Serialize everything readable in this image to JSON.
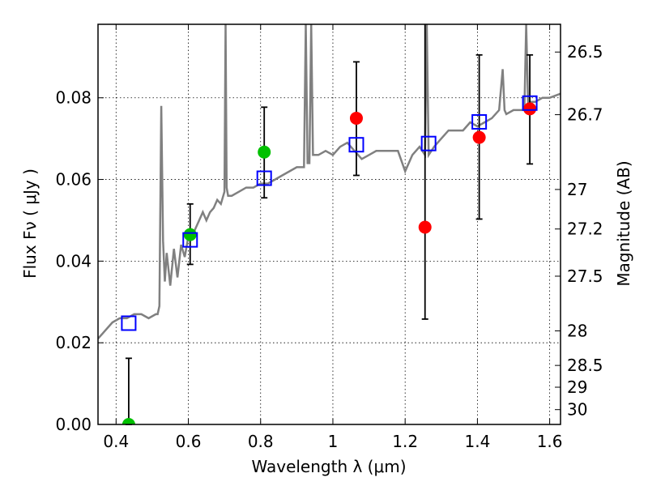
{
  "chart_data": {
    "type": "scatter",
    "xlabel": "Wavelength  λ (μm)",
    "ylabel": "Flux  Fν  ( μJy )",
    "y2label": "Magnitude (AB)",
    "xlim": [
      0.35,
      1.63
    ],
    "ylim": [
      0.0,
      0.098
    ],
    "grid": true,
    "xticks": [
      {
        "v": 0.4,
        "label": "0.4"
      },
      {
        "v": 0.6,
        "label": "0.6"
      },
      {
        "v": 0.8,
        "label": "0.8"
      },
      {
        "v": 1.0,
        "label": "1"
      },
      {
        "v": 1.2,
        "label": "1.2"
      },
      {
        "v": 1.4,
        "label": "1.4"
      },
      {
        "v": 1.6,
        "label": "1.6"
      }
    ],
    "yticks": [
      {
        "v": 0.0,
        "label": "0.00"
      },
      {
        "v": 0.02,
        "label": "0.02"
      },
      {
        "v": 0.04,
        "label": "0.04"
      },
      {
        "v": 0.06,
        "label": "0.06"
      },
      {
        "v": 0.08,
        "label": "0.08"
      }
    ],
    "y2ticks": [
      {
        "mag": 26.5,
        "label": "26.5"
      },
      {
        "mag": 26.7,
        "label": "26.7"
      },
      {
        "mag": 27.0,
        "label": "27"
      },
      {
        "mag": 27.2,
        "label": "27.2"
      },
      {
        "mag": 27.5,
        "label": "27.5"
      },
      {
        "mag": 28.0,
        "label": "28"
      },
      {
        "mag": 28.5,
        "label": "28.5"
      },
      {
        "mag": 29.0,
        "label": "29"
      },
      {
        "mag": 30.0,
        "label": "30"
      }
    ],
    "spectrum": {
      "color": "#808080",
      "x": [
        0.35,
        0.37,
        0.39,
        0.41,
        0.43,
        0.45,
        0.47,
        0.49,
        0.51,
        0.515,
        0.52,
        0.525,
        0.53,
        0.535,
        0.54,
        0.55,
        0.56,
        0.57,
        0.58,
        0.59,
        0.6,
        0.61,
        0.62,
        0.63,
        0.64,
        0.65,
        0.66,
        0.67,
        0.68,
        0.69,
        0.7,
        0.703,
        0.706,
        0.71,
        0.72,
        0.74,
        0.76,
        0.78,
        0.8,
        0.82,
        0.84,
        0.86,
        0.88,
        0.9,
        0.92,
        0.925,
        0.93,
        0.935,
        0.94,
        0.945,
        0.95,
        0.96,
        0.98,
        1.0,
        1.02,
        1.04,
        1.06,
        1.08,
        1.1,
        1.12,
        1.14,
        1.16,
        1.18,
        1.2,
        1.22,
        1.24,
        1.255,
        1.26,
        1.265,
        1.28,
        1.3,
        1.32,
        1.34,
        1.36,
        1.38,
        1.4,
        1.42,
        1.44,
        1.46,
        1.47,
        1.475,
        1.48,
        1.5,
        1.52,
        1.53,
        1.535,
        1.54,
        1.56,
        1.58,
        1.6,
        1.63
      ],
      "y": [
        0.021,
        0.023,
        0.025,
        0.026,
        0.026,
        0.027,
        0.027,
        0.026,
        0.027,
        0.027,
        0.029,
        0.078,
        0.045,
        0.035,
        0.042,
        0.034,
        0.043,
        0.036,
        0.044,
        0.041,
        0.046,
        0.046,
        0.048,
        0.05,
        0.052,
        0.05,
        0.052,
        0.053,
        0.055,
        0.054,
        0.057,
        0.098,
        0.058,
        0.056,
        0.056,
        0.057,
        0.058,
        0.058,
        0.059,
        0.059,
        0.06,
        0.061,
        0.062,
        0.063,
        0.063,
        0.098,
        0.064,
        0.064,
        0.098,
        0.066,
        0.066,
        0.066,
        0.067,
        0.066,
        0.068,
        0.069,
        0.067,
        0.065,
        0.066,
        0.067,
        0.067,
        0.067,
        0.067,
        0.062,
        0.066,
        0.068,
        0.066,
        0.098,
        0.066,
        0.068,
        0.07,
        0.072,
        0.072,
        0.072,
        0.074,
        0.073,
        0.074,
        0.075,
        0.077,
        0.087,
        0.077,
        0.076,
        0.077,
        0.077,
        0.077,
        0.098,
        0.079,
        0.079,
        0.08,
        0.08,
        0.081
      ]
    },
    "series": [
      {
        "marker": "circle",
        "color": "#ff0000",
        "x": [
          1.065,
          1.255,
          1.405,
          1.545
        ],
        "y": [
          0.075,
          0.0483,
          0.0703,
          0.0773
        ],
        "yerr_low": [
          0.061,
          0.0258,
          0.0503,
          0.0638
        ],
        "yerr_high": [
          0.0888,
          0.098,
          0.0905,
          0.0905
        ]
      },
      {
        "marker": "circle",
        "color": "#00c000",
        "x": [
          0.435,
          0.605,
          0.81
        ],
        "y": [
          0.0,
          0.0465,
          0.0667
        ],
        "yerr_low": [
          0.0,
          0.0392,
          0.0555
        ],
        "yerr_high": [
          0.0162,
          0.054,
          0.0777
        ]
      },
      {
        "marker": "open-square",
        "color": "#0000ff",
        "x": [
          0.435,
          0.605,
          0.81,
          1.065,
          1.265,
          1.405,
          1.545
        ],
        "y": [
          0.0248,
          0.0452,
          0.0603,
          0.0685,
          0.0688,
          0.0741,
          0.0787
        ]
      }
    ]
  }
}
